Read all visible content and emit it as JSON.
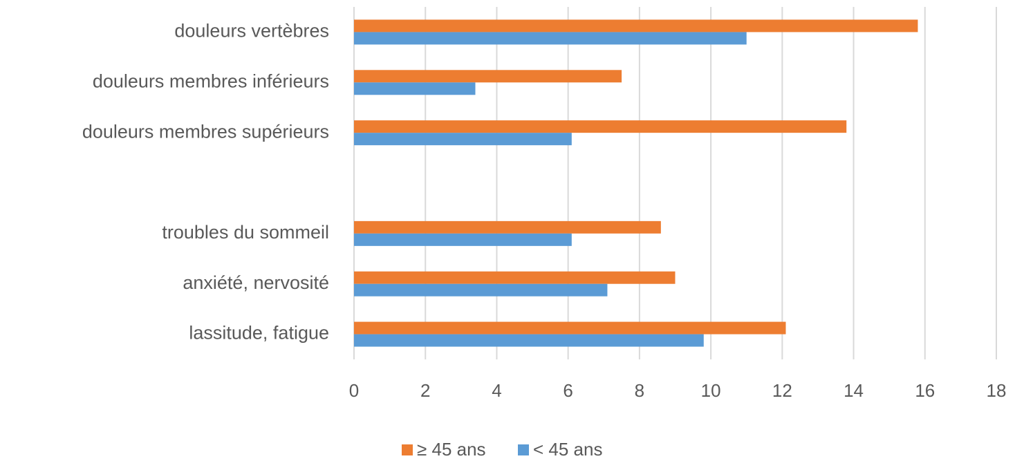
{
  "chart_data": {
    "type": "barh",
    "categories": [
      "douleurs vertèbres",
      "douleurs membres inférieurs",
      "douleurs membres supérieurs",
      null,
      "troubles du sommeil",
      "anxiété, nervosité",
      "lassitude, fatigue"
    ],
    "series": [
      {
        "name": "≥ 45 ans",
        "color": "#ED7D31",
        "values": [
          15.8,
          7.5,
          13.8,
          null,
          8.6,
          9.0,
          12.1
        ]
      },
      {
        "name": "< 45 ans",
        "color": "#5B9BD5",
        "values": [
          11.0,
          3.4,
          6.1,
          null,
          6.1,
          7.1,
          9.8
        ]
      }
    ],
    "xlim": [
      0,
      18
    ],
    "xticks": [
      0,
      2,
      4,
      6,
      8,
      10,
      12,
      14,
      16,
      18
    ],
    "grid": true,
    "legend": "bottom"
  }
}
